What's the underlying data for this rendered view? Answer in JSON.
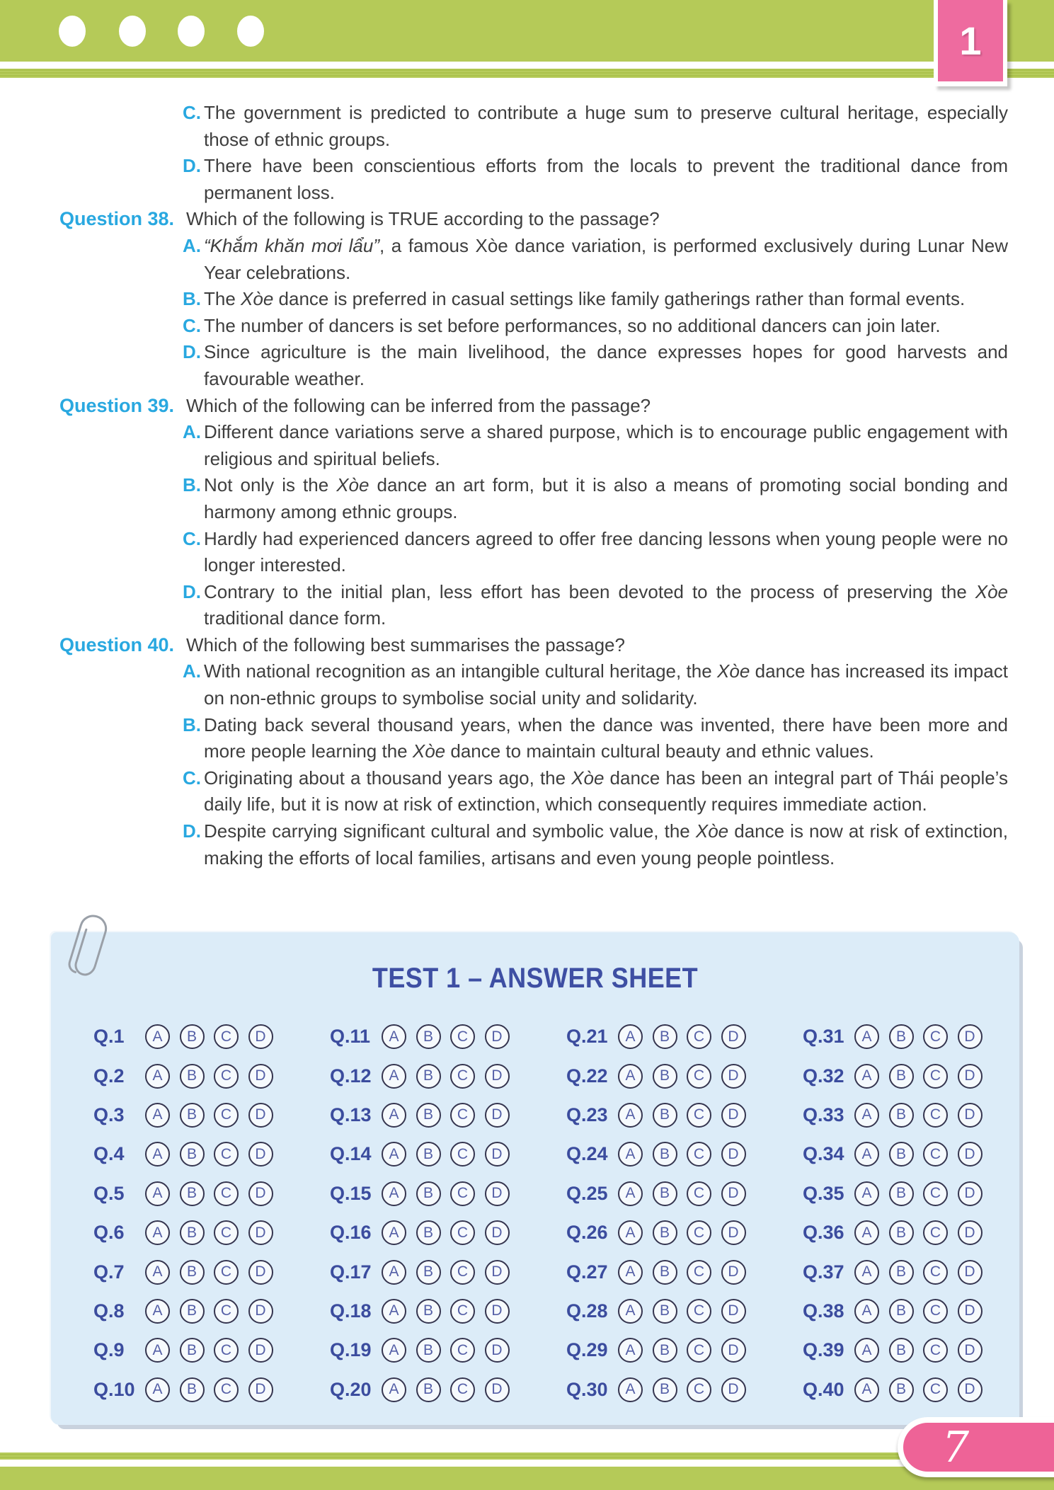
{
  "page": {
    "unit_number": "1",
    "page_number": "7"
  },
  "palette": {
    "band_green": "#b5ca58",
    "tab_pink": "#ee6b9f",
    "badge_pink": "#ee6397",
    "label_cyan": "#29a8e0",
    "body_text": "#3e3e3e",
    "sheet_blue_bg": "#dcecf8",
    "sheet_indigo": "#3e4fa3",
    "bubble_letter_blue": "#5560a7"
  },
  "content": {
    "carryover_options": [
      {
        "letter": "C.",
        "text": "The government is predicted to contribute a huge sum to preserve cultural heritage, especially those of ethnic groups."
      },
      {
        "letter": "D.",
        "text": "There have been conscientious efforts from the locals to prevent the traditional dance from permanent loss."
      }
    ],
    "questions": [
      {
        "label": "Question 38.",
        "prompt": "Which of the following is TRUE according to the passage?",
        "options": [
          {
            "letter": "A.",
            "text": "*“Khắm khăn mơi lẩu”*, a famous Xòe dance variation, is performed exclusively during Lunar New Year celebrations."
          },
          {
            "letter": "B.",
            "text": "The *Xòe* dance is preferred in casual settings like family gatherings rather than formal events."
          },
          {
            "letter": "C.",
            "text": "The number of dancers is set before performances, so no additional dancers can join later."
          },
          {
            "letter": "D.",
            "text": "Since agriculture is the main livelihood, the dance expresses hopes for good harvests and favourable weather."
          }
        ]
      },
      {
        "label": "Question 39.",
        "prompt": "Which of the following can be inferred from the passage?",
        "options": [
          {
            "letter": "A.",
            "text": "Different dance variations serve a shared purpose, which is to encourage public engagement with religious and spiritual beliefs."
          },
          {
            "letter": "B.",
            "text": "Not only is the *Xòe* dance an art form, but it is also a means of promoting social bonding and harmony among ethnic groups."
          },
          {
            "letter": "C.",
            "text": "Hardly had experienced dancers agreed to offer free dancing lessons when young people were no longer interested."
          },
          {
            "letter": "D.",
            "text": "Contrary to the initial plan, less effort has been devoted to the process of preserving the *Xòe* traditional dance form."
          }
        ]
      },
      {
        "label": "Question 40.",
        "prompt": "Which of the following best summarises the passage?",
        "options": [
          {
            "letter": "A.",
            "text": "With national recognition as an intangible cultural heritage, the *Xòe* dance has increased its impact on non-ethnic groups to symbolise social unity and solidarity."
          },
          {
            "letter": "B.",
            "text": "Dating back several thousand years, when the dance was invented, there have been more and more people learning the *Xòe* dance to maintain cultural beauty and ethnic values."
          },
          {
            "letter": "C.",
            "text": "Originating about a thousand years ago, the *Xòe* dance has been an integral part of Thái people’s daily life, but it is now at risk of extinction, which consequently requires immediate action."
          },
          {
            "letter": "D.",
            "text": "Despite carrying significant cultural and symbolic value, the *Xòe* dance is now at risk of extinction, making the efforts of local families, artisans and even young people pointless."
          }
        ]
      }
    ]
  },
  "answer_sheet": {
    "title": "TEST 1 – ANSWER SHEET",
    "choices": [
      "A",
      "B",
      "C",
      "D"
    ],
    "question_labels": [
      "Q.1",
      "Q.2",
      "Q.3",
      "Q.4",
      "Q.5",
      "Q.6",
      "Q.7",
      "Q.8",
      "Q.9",
      "Q.10",
      "Q.11",
      "Q.12",
      "Q.13",
      "Q.14",
      "Q.15",
      "Q.16",
      "Q.17",
      "Q.18",
      "Q.19",
      "Q.20",
      "Q.21",
      "Q.22",
      "Q.23",
      "Q.24",
      "Q.25",
      "Q.26",
      "Q.27",
      "Q.28",
      "Q.29",
      "Q.30",
      "Q.31",
      "Q.32",
      "Q.33",
      "Q.34",
      "Q.35",
      "Q.36",
      "Q.37",
      "Q.38",
      "Q.39",
      "Q.40"
    ]
  }
}
